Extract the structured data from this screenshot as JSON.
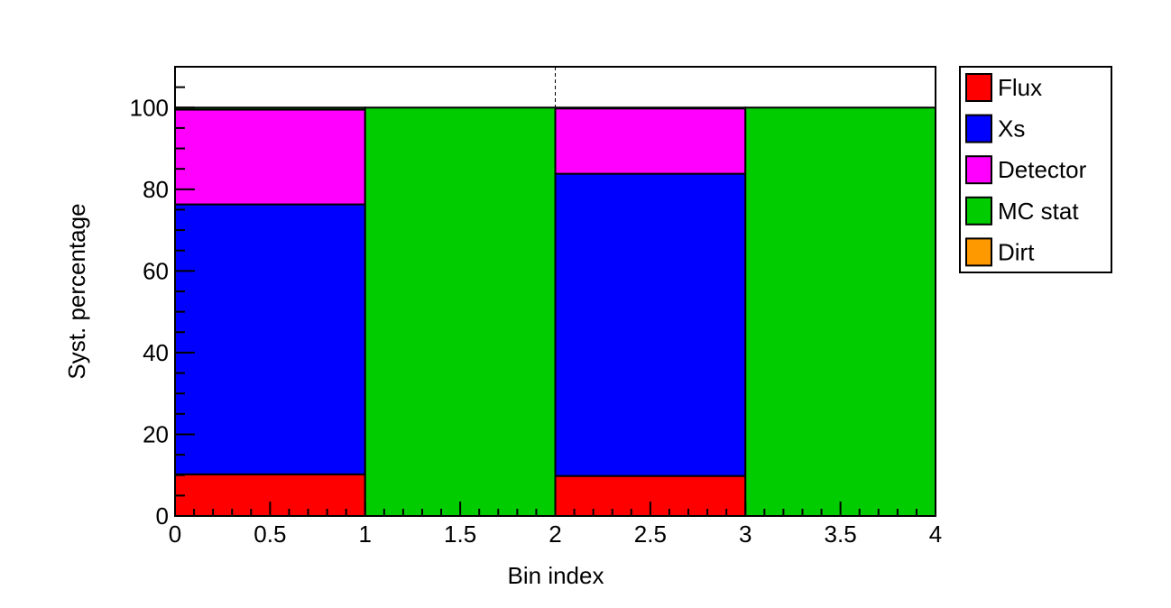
{
  "chart_data": {
    "type": "bar",
    "stacked": true,
    "xlabel": "Bin index",
    "ylabel": "Syst. percentage",
    "xlim": [
      0,
      4
    ],
    "ylim": [
      0,
      110
    ],
    "x_ticks": [
      "0",
      "0.5",
      "1",
      "1.5",
      "2",
      "2.5",
      "3",
      "3.5",
      "4"
    ],
    "y_ticks": [
      "0",
      "20",
      "40",
      "60",
      "80",
      "100"
    ],
    "bins": [
      {
        "x0": 0,
        "x1": 1
      },
      {
        "x0": 1,
        "x1": 2
      },
      {
        "x0": 2,
        "x1": 3
      },
      {
        "x0": 3,
        "x1": 4
      }
    ],
    "series": [
      {
        "name": "Flux",
        "color": "#ff0000",
        "values": [
          10.2,
          0,
          9.8,
          0
        ]
      },
      {
        "name": "Xs",
        "color": "#0000ff",
        "values": [
          66.1,
          0,
          74.0,
          0
        ]
      },
      {
        "name": "Detector",
        "color": "#ff00ff",
        "values": [
          23.2,
          0,
          16.0,
          0
        ]
      },
      {
        "name": "MC stat",
        "color": "#00cc00",
        "values": [
          0.5,
          100,
          0.2,
          100
        ]
      },
      {
        "name": "Dirt",
        "color": "#ff9900",
        "values": [
          0,
          0,
          0,
          0
        ]
      }
    ],
    "dashed_line_x": 2,
    "grid": false,
    "legend_position": "right"
  }
}
